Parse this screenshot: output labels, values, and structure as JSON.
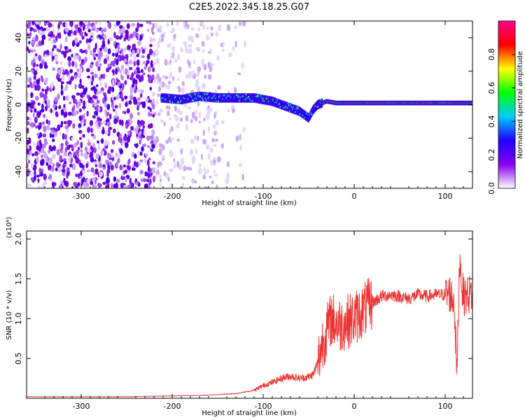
{
  "figure": {
    "title": "C2E5.2022.345.18.25.G07"
  },
  "chart_data": [
    {
      "type": "heatmap",
      "xlabel": "Height of straight line (km)",
      "ylabel": "Frequency (Hz)",
      "xlim": [
        -360,
        130
      ],
      "ylim": [
        -50,
        50
      ],
      "xticks": [
        -300,
        -200,
        -100,
        0,
        100
      ],
      "yticks": [
        -40,
        -20,
        0,
        20,
        40
      ],
      "colorbar": {
        "label": "Normalized spectral amplitude",
        "range": [
          0,
          1
        ],
        "ticks": [
          0.0,
          0.2,
          0.4,
          0.6,
          0.8
        ],
        "colors": [
          "#ffffff",
          "#8800ee",
          "#2200ff",
          "#00ccff",
          "#00ff00",
          "#ffff00",
          "#ff0000",
          "#ff0088"
        ]
      },
      "ridge": {
        "x": [
          -210,
          -190,
          -170,
          -150,
          -130,
          -110,
          -100,
          -90,
          -80,
          -70,
          -60,
          -55,
          -50,
          -45,
          -40,
          -35,
          -30,
          -20,
          0,
          50,
          100,
          130
        ],
        "frequency_hz": [
          4,
          3,
          5,
          4,
          4,
          4,
          3,
          2,
          0,
          -2,
          -4,
          -6,
          -8,
          -3,
          0,
          1,
          2,
          1,
          1,
          1,
          1,
          1
        ]
      }
    },
    {
      "type": "line",
      "xlabel": "Height of straight line (km)",
      "ylabel": "SNR (10 * v/v)",
      "y_multiplier_label": "(x10⁴)",
      "xlim": [
        -360,
        130
      ],
      "ylim": [
        0,
        2.1
      ],
      "xticks": [
        -300,
        -200,
        -100,
        0,
        100
      ],
      "yticks": [
        0.5,
        1.0,
        1.5,
        2.0
      ],
      "yticklabels": [
        "0.5",
        "1.0",
        "1.5",
        "2.0"
      ],
      "series": [
        {
          "color": "#ee3333",
          "x": [
            -360,
            -300,
            -250,
            -200,
            -160,
            -130,
            -110,
            -100,
            -90,
            -80,
            -70,
            -60,
            -50,
            -45,
            -40,
            -35,
            -30,
            -25,
            -20,
            -15,
            -10,
            0,
            10,
            20,
            30,
            40,
            50,
            60,
            70,
            80,
            90,
            100,
            105,
            110,
            113,
            116,
            118,
            120,
            125,
            130
          ],
          "y": [
            0.02,
            0.02,
            0.02,
            0.03,
            0.04,
            0.06,
            0.1,
            0.16,
            0.2,
            0.25,
            0.28,
            0.25,
            0.27,
            0.3,
            0.45,
            0.7,
            0.85,
            1.0,
            0.95,
            0.92,
            0.95,
            1.0,
            1.1,
            1.2,
            1.28,
            1.3,
            1.28,
            1.25,
            1.3,
            1.28,
            1.3,
            1.3,
            1.32,
            1.2,
            0.3,
            1.8,
            1.45,
            1.28,
            1.3,
            1.32
          ]
        }
      ]
    }
  ]
}
